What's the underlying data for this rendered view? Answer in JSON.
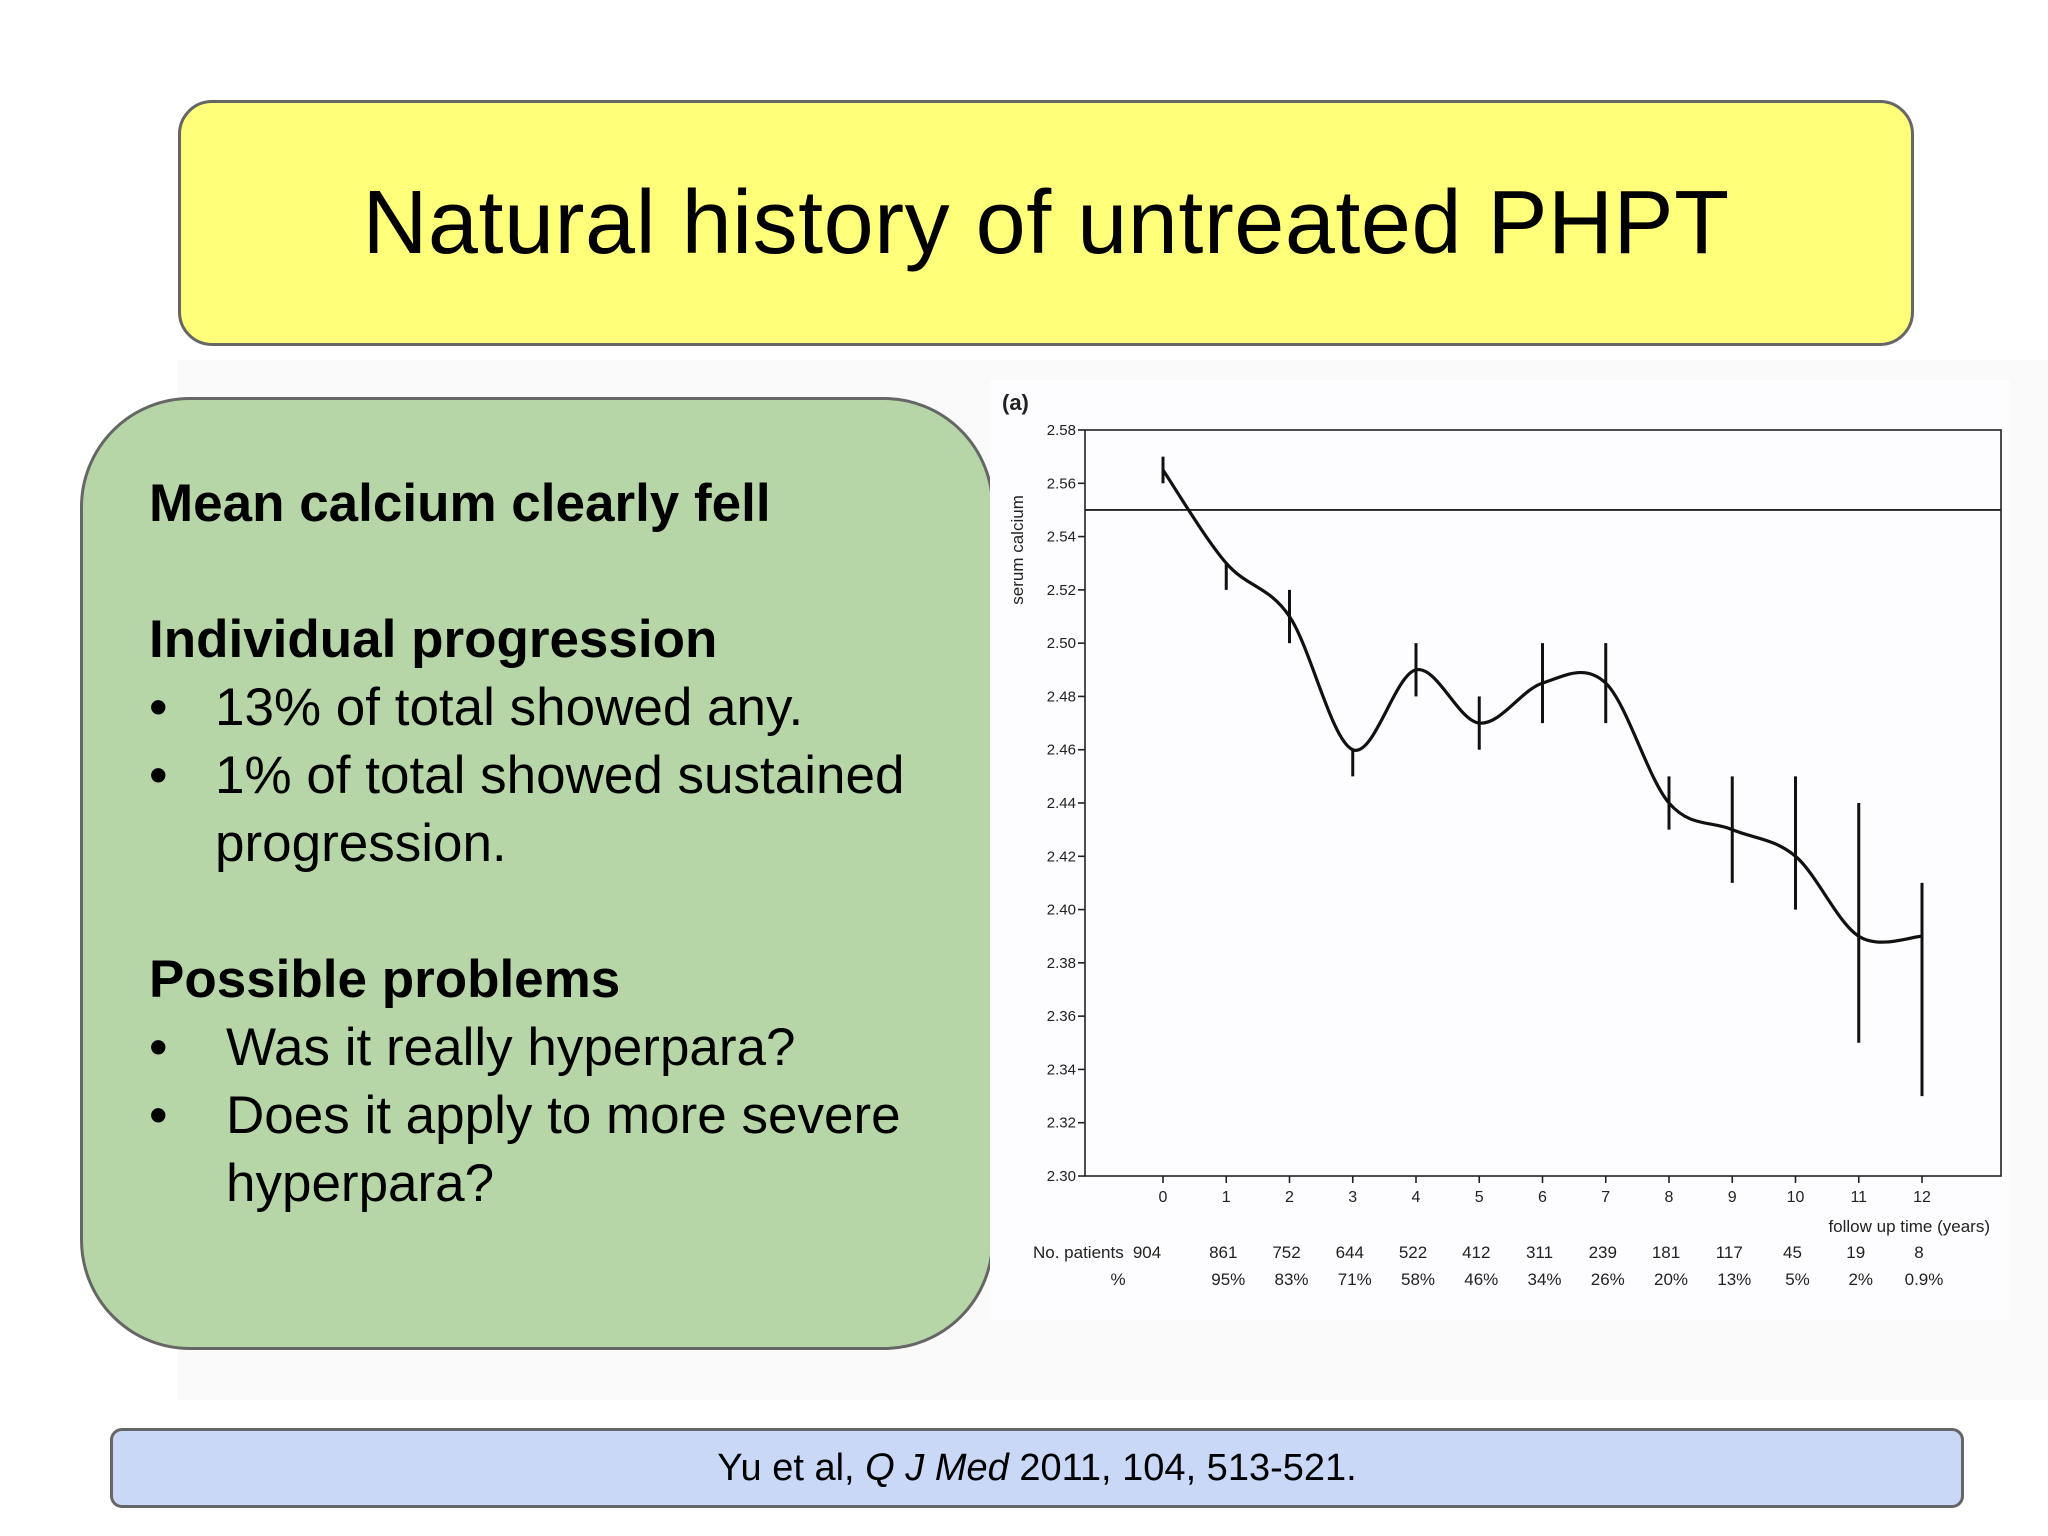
{
  "slide": {
    "title": "Natural history of untreated PHPT"
  },
  "text_box": {
    "heading1": "Mean calcium clearly fell",
    "heading2": "Individual progression",
    "bullets1": [
      "13% of total showed any.",
      "1% of total showed sustained progression."
    ],
    "heading3": "Possible problems",
    "bullets2": [
      "Was it really hyperpara?",
      "Does it apply to more severe hyperpara?"
    ],
    "bullet_char": "•"
  },
  "citation": {
    "prefix": "Yu et al, ",
    "journal": "Q J Med",
    "suffix": " 2011, 104, 513-521."
  },
  "chart_data": {
    "type": "line",
    "panel_label": "(a)",
    "ylabel": "serum calcium",
    "xlabel": "follow up time (years)",
    "ylim": [
      2.3,
      2.58
    ],
    "yticks": [
      "2.30",
      "2.32",
      "2.34",
      "2.36",
      "2.38",
      "2.40",
      "2.42",
      "2.44",
      "2.46",
      "2.48",
      "2.50",
      "2.52",
      "2.54",
      "2.56",
      "2.58"
    ],
    "x": [
      "0",
      "1",
      "2",
      "3",
      "4",
      "5",
      "6",
      "7",
      "8",
      "9",
      "10",
      "11",
      "12"
    ],
    "reference_line": 2.55,
    "series": [
      {
        "mean": [
          2.565,
          2.53,
          2.51,
          2.46,
          2.49,
          2.47,
          2.485,
          2.485,
          2.44,
          2.43,
          2.42,
          2.39,
          2.39
        ],
        "lower": [
          2.56,
          2.52,
          2.5,
          2.45,
          2.48,
          2.46,
          2.47,
          2.47,
          2.43,
          2.41,
          2.4,
          2.35,
          2.33
        ],
        "upper": [
          2.57,
          2.53,
          2.52,
          2.46,
          2.5,
          2.48,
          2.5,
          2.5,
          2.45,
          2.45,
          2.45,
          2.44,
          2.41
        ]
      }
    ],
    "grid": false,
    "table": {
      "row1_label": "No. patients",
      "row1": [
        "904",
        "861",
        "752",
        "644",
        "522",
        "412",
        "311",
        "239",
        "181",
        "117",
        "45",
        "19",
        "8"
      ],
      "row2_label": "%",
      "row2": [
        "",
        "95%",
        "83%",
        "71%",
        "58%",
        "46%",
        "34%",
        "26%",
        "20%",
        "13%",
        "5%",
        "2%",
        "0.9%"
      ]
    }
  }
}
